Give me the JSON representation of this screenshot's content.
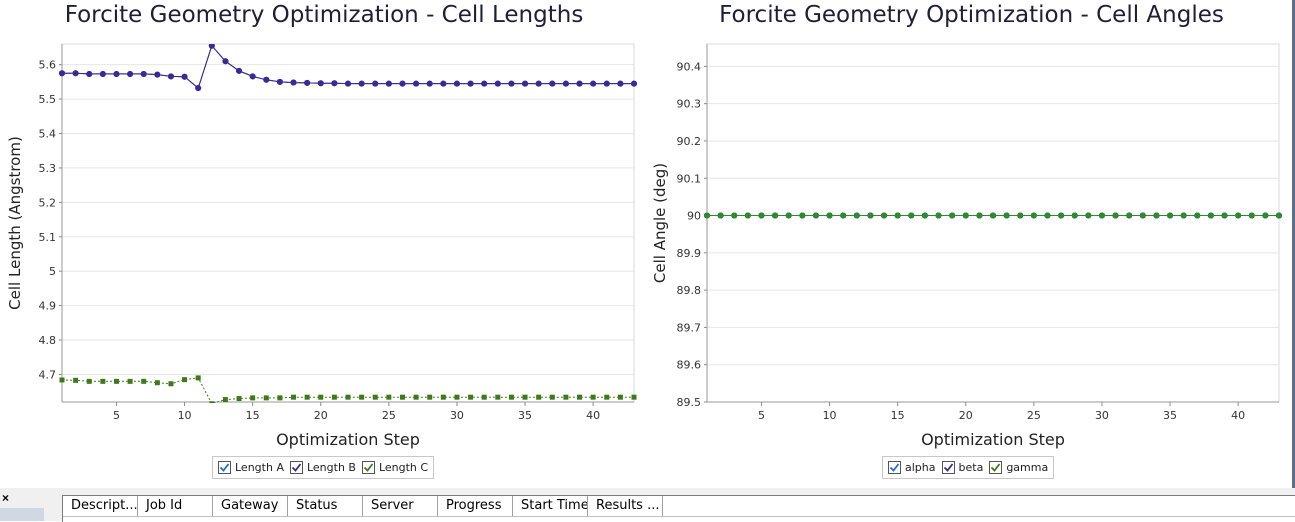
{
  "chart_data": [
    {
      "type": "line",
      "title": "Forcite Geometry Optimization - Cell Lengths",
      "xlabel": "Optimization Step",
      "ylabel": "Cell Length (Angstrom)",
      "xlim": [
        1,
        43
      ],
      "ylim": [
        4.62,
        5.66
      ],
      "xticks": [
        5,
        10,
        15,
        20,
        25,
        30,
        35,
        40
      ],
      "yticks": [
        4.7,
        4.8,
        4.9,
        5,
        5.1,
        5.2,
        5.3,
        5.4,
        5.5,
        5.6
      ],
      "ytick_labels": [
        "4.7",
        "4.8",
        "4.9",
        "5",
        "5.1",
        "5.2",
        "5.3",
        "5.4",
        "5.5",
        "5.6"
      ],
      "grid": true,
      "legend_position": "bottom-center",
      "x": [
        1,
        2,
        3,
        4,
        5,
        6,
        7,
        8,
        9,
        10,
        11,
        12,
        13,
        14,
        15,
        16,
        17,
        18,
        19,
        20,
        21,
        22,
        23,
        24,
        25,
        26,
        27,
        28,
        29,
        30,
        31,
        32,
        33,
        34,
        35,
        36,
        37,
        38,
        39,
        40,
        41,
        42,
        43
      ],
      "series": [
        {
          "name": "Length A",
          "color": "#1f1a8a",
          "marker": "circle",
          "line": "solid",
          "values": [
            5.575,
            5.575,
            5.573,
            5.573,
            5.573,
            5.573,
            5.573,
            5.571,
            5.566,
            5.565,
            5.532,
            5.655,
            5.61,
            5.582,
            5.566,
            5.556,
            5.55,
            5.548,
            5.547,
            5.546,
            5.546,
            5.545,
            5.545,
            5.545,
            5.545,
            5.545,
            5.545,
            5.545,
            5.545,
            5.545,
            5.545,
            5.545,
            5.545,
            5.545,
            5.545,
            5.545,
            5.545,
            5.545,
            5.545,
            5.545,
            5.545,
            5.545,
            5.545
          ]
        },
        {
          "name": "Length B",
          "color": "#3b2a96",
          "marker": "circle",
          "line": "solid",
          "values": [
            5.575,
            5.575,
            5.573,
            5.573,
            5.573,
            5.573,
            5.573,
            5.571,
            5.566,
            5.565,
            5.532,
            5.655,
            5.61,
            5.582,
            5.566,
            5.556,
            5.55,
            5.548,
            5.547,
            5.546,
            5.546,
            5.545,
            5.545,
            5.545,
            5.545,
            5.545,
            5.545,
            5.545,
            5.545,
            5.545,
            5.545,
            5.545,
            5.545,
            5.545,
            5.545,
            5.545,
            5.545,
            5.545,
            5.545,
            5.545,
            5.545,
            5.545,
            5.545
          ]
        },
        {
          "name": "Length C",
          "color": "#3e7a1a",
          "marker": "square",
          "line": "dotted",
          "values": [
            4.684,
            4.683,
            4.68,
            4.68,
            4.68,
            4.68,
            4.68,
            4.676,
            4.673,
            4.685,
            4.69,
            4.615,
            4.627,
            4.63,
            4.632,
            4.632,
            4.632,
            4.634,
            4.634,
            4.634,
            4.634,
            4.634,
            4.634,
            4.634,
            4.634,
            4.634,
            4.634,
            4.634,
            4.634,
            4.634,
            4.634,
            4.634,
            4.634,
            4.634,
            4.634,
            4.634,
            4.634,
            4.634,
            4.634,
            4.634,
            4.634,
            4.634,
            4.634
          ]
        }
      ]
    },
    {
      "type": "line",
      "title": "Forcite Geometry Optimization - Cell Angles",
      "xlabel": "Optimization Step",
      "ylabel": "Cell Angle (deg)",
      "xlim": [
        1,
        43
      ],
      "ylim": [
        89.5,
        90.46
      ],
      "xticks": [
        5,
        10,
        15,
        20,
        25,
        30,
        35,
        40
      ],
      "yticks": [
        89.5,
        89.6,
        89.7,
        89.8,
        89.9,
        90,
        90.1,
        90.2,
        90.3,
        90.4
      ],
      "ytick_labels": [
        "89.5",
        "89.6",
        "89.7",
        "89.8",
        "89.9",
        "90",
        "90.1",
        "90.2",
        "90.3",
        "90.4"
      ],
      "grid": true,
      "legend_position": "bottom-center",
      "x": [
        1,
        2,
        3,
        4,
        5,
        6,
        7,
        8,
        9,
        10,
        11,
        12,
        13,
        14,
        15,
        16,
        17,
        18,
        19,
        20,
        21,
        22,
        23,
        24,
        25,
        26,
        27,
        28,
        29,
        30,
        31,
        32,
        33,
        34,
        35,
        36,
        37,
        38,
        39,
        40,
        41,
        42,
        43
      ],
      "series": [
        {
          "name": "alpha",
          "color": "#1f1a8a",
          "marker": "circle",
          "line": "solid",
          "values": [
            90,
            90,
            90,
            90,
            90,
            90,
            90,
            90,
            90,
            90,
            90,
            90,
            90,
            90,
            90,
            90,
            90,
            90,
            90,
            90,
            90,
            90,
            90,
            90,
            90,
            90,
            90,
            90,
            90,
            90,
            90,
            90,
            90,
            90,
            90,
            90,
            90,
            90,
            90,
            90,
            90,
            90,
            90
          ]
        },
        {
          "name": "beta",
          "color": "#3b2a96",
          "marker": "circle",
          "line": "solid",
          "values": [
            90,
            90,
            90,
            90,
            90,
            90,
            90,
            90,
            90,
            90,
            90,
            90,
            90,
            90,
            90,
            90,
            90,
            90,
            90,
            90,
            90,
            90,
            90,
            90,
            90,
            90,
            90,
            90,
            90,
            90,
            90,
            90,
            90,
            90,
            90,
            90,
            90,
            90,
            90,
            90,
            90,
            90,
            90
          ]
        },
        {
          "name": "gamma",
          "color": "#2f8a2f",
          "marker": "circle",
          "line": "solid",
          "values": [
            90,
            90,
            90,
            90,
            90,
            90,
            90,
            90,
            90,
            90,
            90,
            90,
            90,
            90,
            90,
            90,
            90,
            90,
            90,
            90,
            90,
            90,
            90,
            90,
            90,
            90,
            90,
            90,
            90,
            90,
            90,
            90,
            90,
            90,
            90,
            90,
            90,
            90,
            90,
            90,
            90,
            90,
            90
          ]
        }
      ]
    }
  ],
  "legends": [
    {
      "items": [
        {
          "label": "Length A",
          "checked": true,
          "check_color": "#1f6fd1"
        },
        {
          "label": "Length B",
          "checked": true,
          "check_color": "#3b2a96"
        },
        {
          "label": "Length C",
          "checked": true,
          "check_color": "#3e7a1a"
        }
      ]
    },
    {
      "items": [
        {
          "label": "alpha",
          "checked": true,
          "check_color": "#1f6fd1"
        },
        {
          "label": "beta",
          "checked": true,
          "check_color": "#3b2a96"
        },
        {
          "label": "gamma",
          "checked": true,
          "check_color": "#3e7a1a"
        }
      ]
    }
  ],
  "bottom_panel": {
    "close_symbol": "×",
    "columns": [
      "Descript...",
      "Job Id",
      "Gateway",
      "Status",
      "Server",
      "Progress",
      "Start Time",
      "Results ..."
    ]
  }
}
